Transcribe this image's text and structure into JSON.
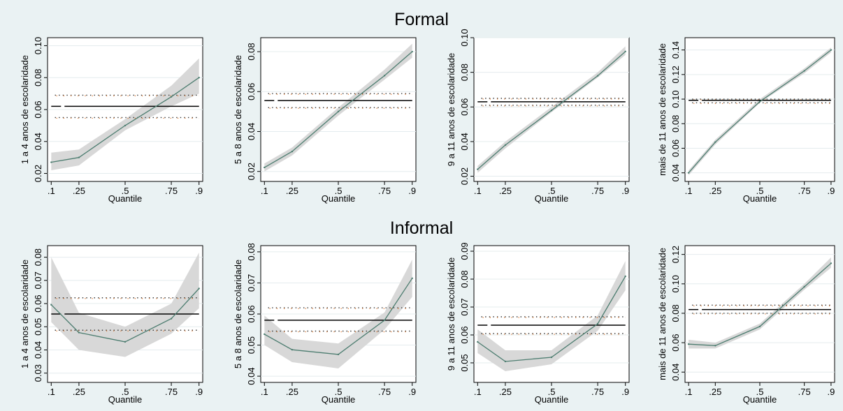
{
  "sections": {
    "formal": "Formal",
    "informal": "Informal"
  },
  "colors": {
    "background": "#eaf2f3",
    "plot_bg": "#ffffff",
    "ci_band": "#d8d8d8",
    "quantile_line": "#4d7d70",
    "ols_line": "#000000",
    "ols_ci_dots": "#333333",
    "accent_dots": "#e07020",
    "grid": "#e4ecee"
  },
  "chart_data": [
    {
      "type": "line",
      "group": "Formal",
      "xlabel": "Quantile",
      "ylabel": "1 a 4 anos de escolaridade",
      "xticks": [
        0.1,
        0.25,
        0.5,
        0.75,
        0.9
      ],
      "xtick_labels": [
        ".1",
        ".25",
        ".5",
        ".75",
        ".9"
      ],
      "yticks": [
        0.02,
        0.04,
        0.06,
        0.08,
        0.1
      ],
      "ytick_labels": [
        "0.02",
        "0.04",
        "0.06",
        "0.08",
        "0.10"
      ],
      "ylim": [
        0.015,
        0.105
      ],
      "xlim": [
        0.08,
        0.92
      ],
      "x": [
        0.1,
        0.25,
        0.5,
        0.75,
        0.9
      ],
      "y": [
        0.027,
        0.03,
        0.05,
        0.068,
        0.08
      ],
      "ci_low": [
        0.022,
        0.025,
        0.047,
        0.062,
        0.07
      ],
      "ci_high": [
        0.033,
        0.035,
        0.054,
        0.075,
        0.092
      ],
      "ols": 0.062,
      "ols_ci": [
        0.055,
        0.069
      ]
    },
    {
      "type": "line",
      "group": "Formal",
      "xlabel": "Quantile",
      "ylabel": "5 a 8 anos de escolaridade",
      "xticks": [
        0.1,
        0.25,
        0.5,
        0.75,
        0.9
      ],
      "xtick_labels": [
        ".1",
        ".25",
        ".5",
        ".75",
        ".9"
      ],
      "yticks": [
        0.02,
        0.04,
        0.06,
        0.08
      ],
      "ytick_labels": [
        "0.02",
        "0.04",
        "0.06",
        "0.08"
      ],
      "ylim": [
        0.015,
        0.087
      ],
      "xlim": [
        0.08,
        0.92
      ],
      "x": [
        0.1,
        0.25,
        0.5,
        0.75,
        0.9
      ],
      "y": [
        0.022,
        0.03,
        0.05,
        0.068,
        0.08
      ],
      "ci_low": [
        0.02,
        0.028,
        0.048,
        0.066,
        0.077
      ],
      "ci_high": [
        0.024,
        0.032,
        0.052,
        0.071,
        0.084
      ],
      "ols": 0.0555,
      "ols_ci": [
        0.052,
        0.059
      ]
    },
    {
      "type": "line",
      "group": "Formal",
      "xlabel": "Quantile",
      "ylabel": "9 a 11 anos de escolaridade",
      "xticks": [
        0.1,
        0.25,
        0.5,
        0.75,
        0.9
      ],
      "xtick_labels": [
        ".1",
        ".25",
        ".5",
        ".75",
        ".9"
      ],
      "yticks": [
        0.02,
        0.04,
        0.06,
        0.08,
        0.1
      ],
      "ytick_labels": [
        "0.02",
        "0.04",
        "0.06",
        "0.08",
        "0.10"
      ],
      "ylim": [
        0.017,
        0.1
      ],
      "xlim": [
        0.08,
        0.92
      ],
      "x": [
        0.1,
        0.25,
        0.5,
        0.75,
        0.9
      ],
      "y": [
        0.024,
        0.038,
        0.058,
        0.078,
        0.092
      ],
      "ci_low": [
        0.022,
        0.036,
        0.057,
        0.077,
        0.09
      ],
      "ci_high": [
        0.026,
        0.04,
        0.06,
        0.08,
        0.095
      ],
      "ols": 0.063,
      "ols_ci": [
        0.061,
        0.065
      ]
    },
    {
      "type": "line",
      "group": "Formal",
      "xlabel": "Quantile",
      "ylabel": "mais de 11 anos de escolaridade",
      "xticks": [
        0.1,
        0.25,
        0.5,
        0.75,
        0.9
      ],
      "xtick_labels": [
        ".1",
        ".25",
        ".5",
        ".75",
        ".9"
      ],
      "yticks": [
        0.04,
        0.06,
        0.08,
        0.1,
        0.12,
        0.14
      ],
      "ytick_labels": [
        "0.04",
        "0.06",
        "0.08",
        "0.10",
        "0.12",
        "0.14"
      ],
      "ylim": [
        0.033,
        0.15
      ],
      "xlim": [
        0.08,
        0.92
      ],
      "x": [
        0.1,
        0.25,
        0.5,
        0.75,
        0.9
      ],
      "y": [
        0.04,
        0.065,
        0.098,
        0.123,
        0.14
      ],
      "ci_low": [
        0.038,
        0.063,
        0.097,
        0.121,
        0.138
      ],
      "ci_high": [
        0.042,
        0.067,
        0.1,
        0.125,
        0.142
      ],
      "ols": 0.099,
      "ols_ci": [
        0.097,
        0.1
      ]
    },
    {
      "type": "line",
      "group": "Informal",
      "xlabel": "Quantile",
      "ylabel": "1 a 4 anos de escolaridade",
      "xticks": [
        0.1,
        0.25,
        0.5,
        0.75,
        0.9
      ],
      "xtick_labels": [
        ".1",
        ".25",
        ".5",
        ".75",
        ".9"
      ],
      "yticks": [
        0.03,
        0.04,
        0.05,
        0.06,
        0.07,
        0.08
      ],
      "ytick_labels": [
        "0.03",
        "0.04",
        "0.05",
        "0.06",
        "0.07",
        "0.08"
      ],
      "ylim": [
        0.026,
        0.085
      ],
      "xlim": [
        0.08,
        0.92
      ],
      "x": [
        0.1,
        0.25,
        0.5,
        0.75,
        0.9
      ],
      "y": [
        0.0595,
        0.0475,
        0.0435,
        0.0535,
        0.0665
      ],
      "ci_low": [
        0.052,
        0.04,
        0.037,
        0.047,
        0.058
      ],
      "ci_high": [
        0.08,
        0.056,
        0.05,
        0.06,
        0.082
      ],
      "ols": 0.0555,
      "ols_ci": [
        0.0485,
        0.0625
      ]
    },
    {
      "type": "line",
      "group": "Informal",
      "xlabel": "Quantile",
      "ylabel": "5 a 8 anos de escolaridade",
      "xticks": [
        0.1,
        0.25,
        0.5,
        0.75,
        0.9
      ],
      "xtick_labels": [
        ".1",
        ".25",
        ".5",
        ".75",
        ".9"
      ],
      "yticks": [
        0.04,
        0.05,
        0.06,
        0.07,
        0.08
      ],
      "ytick_labels": [
        "0.04",
        "0.05",
        "0.06",
        "0.07",
        "0.08"
      ],
      "ylim": [
        0.038,
        0.082
      ],
      "xlim": [
        0.08,
        0.92
      ],
      "x": [
        0.1,
        0.25,
        0.5,
        0.75,
        0.9
      ],
      "y": [
        0.0535,
        0.0485,
        0.047,
        0.058,
        0.0715
      ],
      "ci_low": [
        0.05,
        0.0445,
        0.0425,
        0.055,
        0.0655
      ],
      "ci_high": [
        0.0595,
        0.052,
        0.0505,
        0.0605,
        0.0775
      ],
      "ols": 0.058,
      "ols_ci": [
        0.0545,
        0.062
      ]
    },
    {
      "type": "line",
      "group": "Informal",
      "xlabel": "Quantile",
      "ylabel": "9 a 11 anos de escolaridade",
      "xticks": [
        0.1,
        0.25,
        0.5,
        0.75,
        0.9
      ],
      "xtick_labels": [
        ".1",
        ".25",
        ".5",
        ".75",
        ".9"
      ],
      "yticks": [
        0.05,
        0.06,
        0.07,
        0.08,
        0.09
      ],
      "ytick_labels": [
        "0.05",
        "0.06",
        "0.07",
        "0.08",
        "0.09"
      ],
      "ylim": [
        0.043,
        0.092
      ],
      "xlim": [
        0.08,
        0.92
      ],
      "x": [
        0.1,
        0.25,
        0.5,
        0.75,
        0.9
      ],
      "y": [
        0.0575,
        0.0505,
        0.052,
        0.064,
        0.081
      ],
      "ci_low": [
        0.0535,
        0.047,
        0.0495,
        0.0615,
        0.076
      ],
      "ci_high": [
        0.062,
        0.0545,
        0.0545,
        0.067,
        0.0865
      ],
      "ols": 0.0635,
      "ols_ci": [
        0.0605,
        0.0665
      ]
    },
    {
      "type": "line",
      "group": "Informal",
      "xlabel": "Quantile",
      "ylabel": "mais de 11 anos de escolaridade",
      "xticks": [
        0.1,
        0.25,
        0.5,
        0.75,
        0.9
      ],
      "xtick_labels": [
        ".1",
        ".25",
        ".5",
        ".75",
        ".9"
      ],
      "yticks": [
        0.04,
        0.06,
        0.08,
        0.1,
        0.12
      ],
      "ytick_labels": [
        "0.04",
        "0.06",
        "0.08",
        "0.10",
        "0.12"
      ],
      "ylim": [
        0.033,
        0.126
      ],
      "xlim": [
        0.08,
        0.92
      ],
      "x": [
        0.1,
        0.25,
        0.5,
        0.75,
        0.9
      ],
      "y": [
        0.059,
        0.058,
        0.071,
        0.098,
        0.114
      ],
      "ci_low": [
        0.056,
        0.056,
        0.069,
        0.096,
        0.111
      ],
      "ci_high": [
        0.062,
        0.06,
        0.073,
        0.1,
        0.118
      ],
      "ols": 0.0825,
      "ols_ci": [
        0.08,
        0.0855
      ]
    }
  ]
}
